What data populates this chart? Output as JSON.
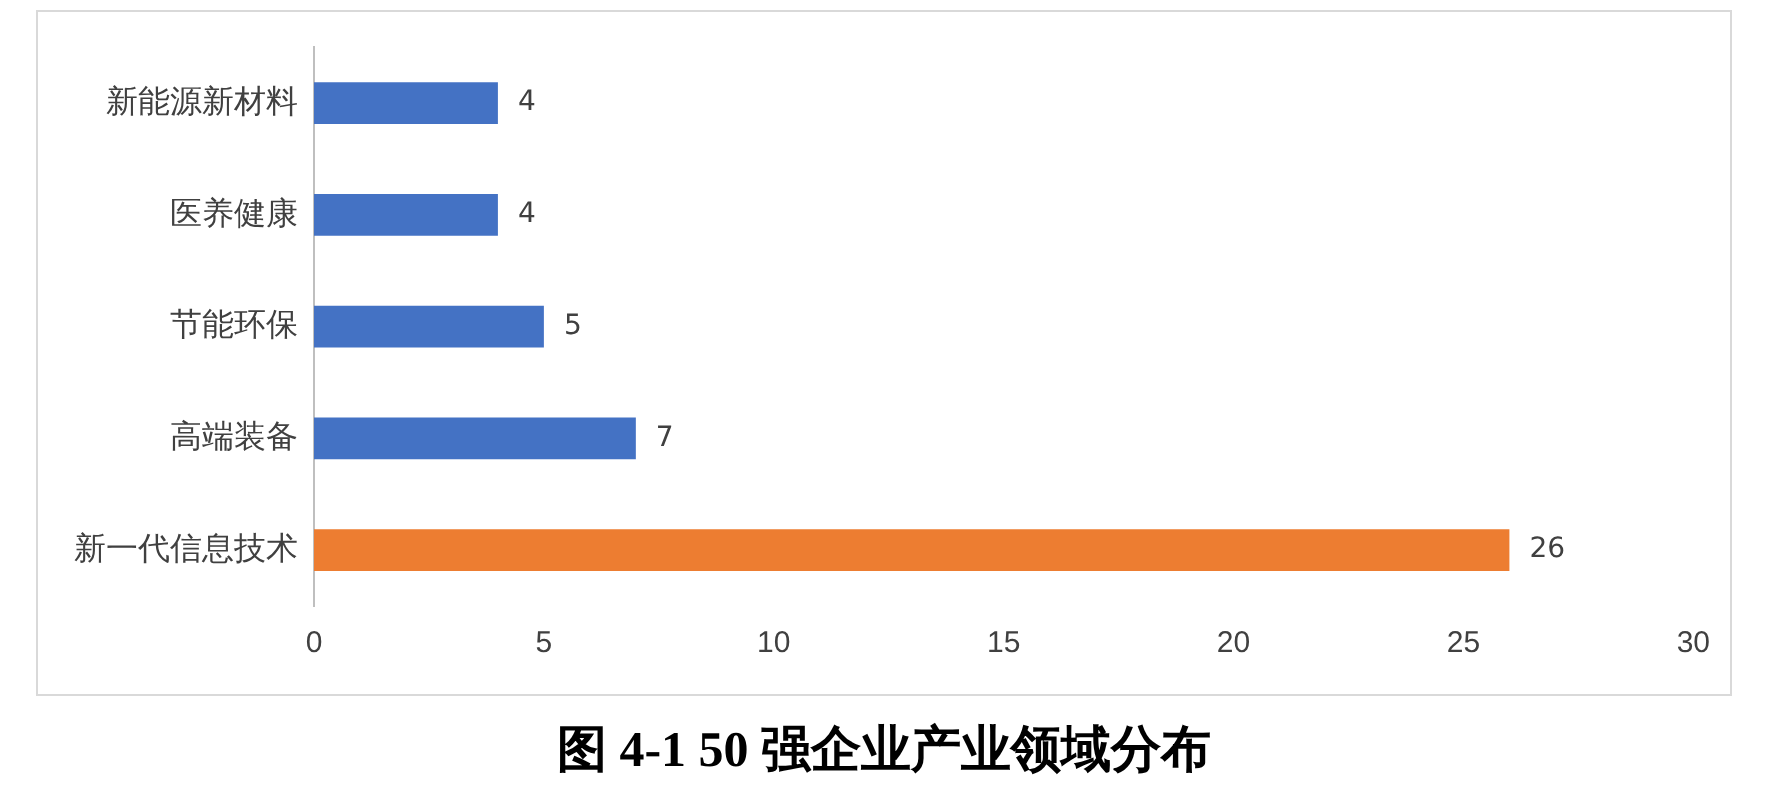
{
  "chart_data": {
    "type": "bar",
    "orientation": "horizontal",
    "title": "图 4-1 50 强企业产业领域分布",
    "categories": [
      "新能源新材料",
      "医养健康",
      "节能环保",
      "高端装备",
      "新一代信息技术"
    ],
    "values": [
      4,
      4,
      5,
      7,
      26
    ],
    "colors": [
      "#4472c4",
      "#4472c4",
      "#4472c4",
      "#4472c4",
      "#ed7d31"
    ],
    "xlim": [
      0,
      30
    ],
    "xticks": [
      0,
      5,
      10,
      15,
      20,
      25,
      30
    ],
    "grid": false,
    "legend": false,
    "data_labels": true
  }
}
